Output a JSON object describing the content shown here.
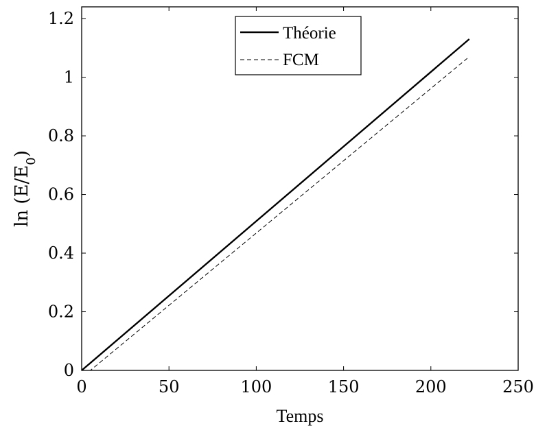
{
  "chart_data": {
    "type": "line",
    "xlabel": "Temps",
    "ylabel": "ln (E/E",
    "ylabel_subscript": "0",
    "ylabel_close": ")",
    "xlim": [
      0,
      250
    ],
    "ylim": [
      0,
      1.24
    ],
    "xticks": [
      0,
      50,
      100,
      150,
      200,
      250
    ],
    "yticks": [
      0,
      0.2,
      0.4,
      0.6,
      0.8,
      1,
      1.2
    ],
    "xtick_labels": [
      "0",
      "50",
      "100",
      "150",
      "200",
      "250"
    ],
    "ytick_labels": [
      "0",
      "0.2",
      "0.4",
      "0.6",
      "0.8",
      "1",
      "1.2"
    ],
    "grid": false,
    "legend_position": "top-center",
    "series": [
      {
        "name": "Théorie",
        "style": "solid",
        "color": "#000000",
        "x": [
          0,
          222
        ],
        "y": [
          0,
          1.13
        ]
      },
      {
        "name": "FCM",
        "style": "dashed",
        "color": "#000000",
        "x": [
          0,
          5,
          222
        ],
        "y": [
          0,
          0,
          1.07
        ]
      }
    ]
  }
}
